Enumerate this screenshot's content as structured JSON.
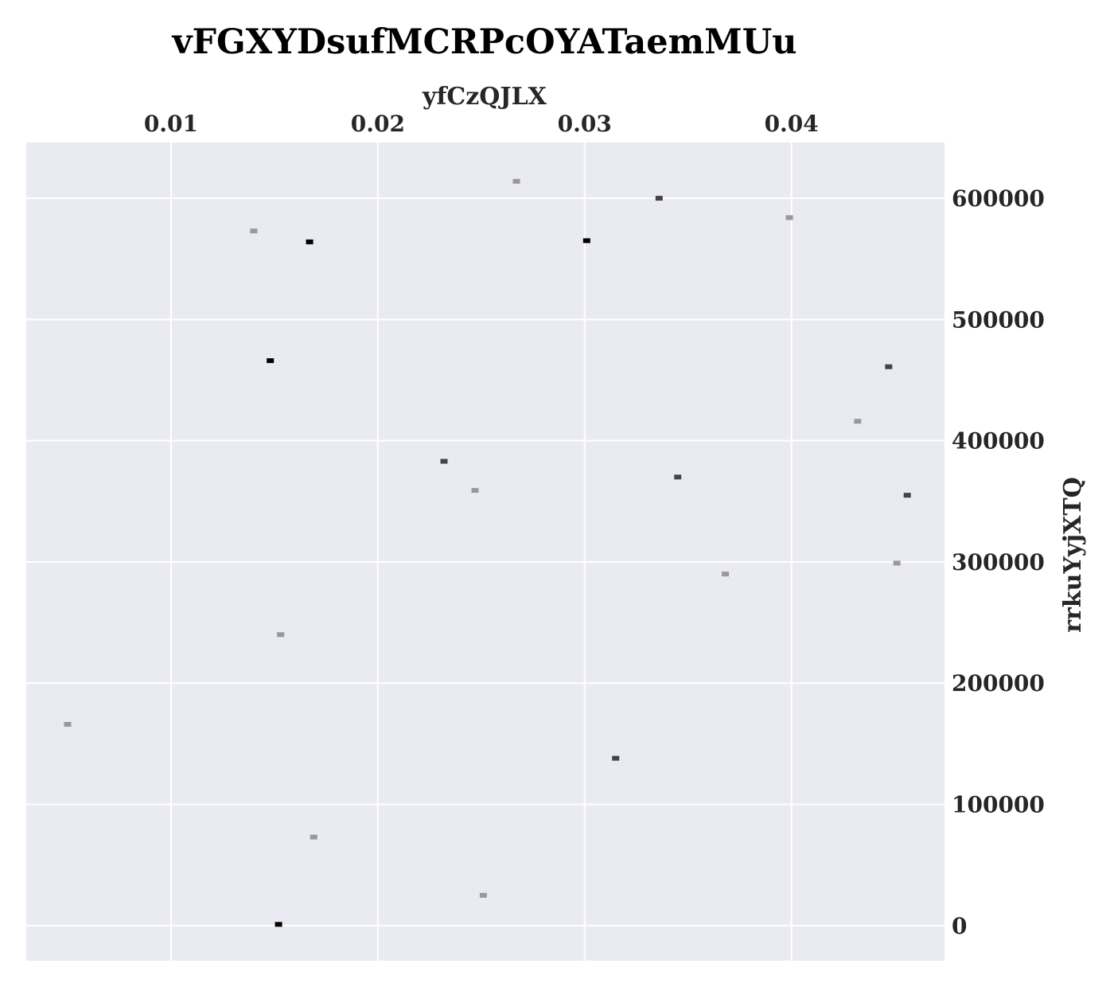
{
  "chart_data": {
    "type": "scatter",
    "title": "vFGXYDsufMCRPcOYATaemMUu",
    "xlabel": "yfCzQJLX",
    "ylabel": "rrkuYyjXTQ",
    "x_axis_position": "top",
    "y_axis_position": "right",
    "xlim": [
      0.003,
      0.0474
    ],
    "ylim": [
      -29000,
      646000
    ],
    "x_ticks": [
      "0.01",
      "0.02",
      "0.03",
      "0.04"
    ],
    "y_ticks": [
      "0",
      "100000",
      "200000",
      "300000",
      "400000",
      "500000",
      "600000"
    ],
    "grid": true,
    "background": "#eaeaf2",
    "grid_color": "#ffffff",
    "marker": "small-square",
    "points": [
      {
        "x": 0.0267,
        "y": 614000,
        "color": "#999999"
      },
      {
        "x": 0.0336,
        "y": 600000,
        "color": "#444444"
      },
      {
        "x": 0.0399,
        "y": 584000,
        "color": "#999999"
      },
      {
        "x": 0.014,
        "y": 573000,
        "color": "#999999"
      },
      {
        "x": 0.0167,
        "y": 564000,
        "color": "#000000"
      },
      {
        "x": 0.0301,
        "y": 565000,
        "color": "#000000"
      },
      {
        "x": 0.0148,
        "y": 466000,
        "color": "#000000"
      },
      {
        "x": 0.0447,
        "y": 461000,
        "color": "#444444"
      },
      {
        "x": 0.0432,
        "y": 416000,
        "color": "#999999"
      },
      {
        "x": 0.0232,
        "y": 383000,
        "color": "#444444"
      },
      {
        "x": 0.0345,
        "y": 370000,
        "color": "#444444"
      },
      {
        "x": 0.0247,
        "y": 359000,
        "color": "#999999"
      },
      {
        "x": 0.0456,
        "y": 355000,
        "color": "#444444"
      },
      {
        "x": 0.0451,
        "y": 299000,
        "color": "#999999"
      },
      {
        "x": 0.0368,
        "y": 290000,
        "color": "#999999"
      },
      {
        "x": 0.0153,
        "y": 240000,
        "color": "#999999"
      },
      {
        "x": 0.005,
        "y": 166000,
        "color": "#999999"
      },
      {
        "x": 0.0315,
        "y": 138000,
        "color": "#444444"
      },
      {
        "x": 0.0169,
        "y": 73000,
        "color": "#999999"
      },
      {
        "x": 0.0251,
        "y": 25000,
        "color": "#999999"
      },
      {
        "x": 0.0152,
        "y": 1000,
        "color": "#000000"
      }
    ]
  }
}
